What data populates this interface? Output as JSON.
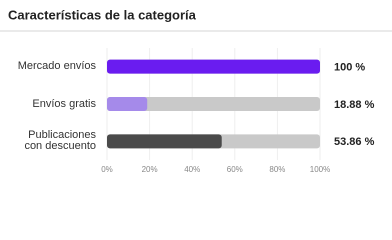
{
  "chart_data": {
    "type": "barh",
    "title": "Características de la categoría",
    "categories": [
      "Mercado envíos",
      "Envíos gratis",
      "Publicaciones con descuento"
    ],
    "values": [
      100,
      18.88,
      53.86
    ],
    "value_labels": [
      "100 %",
      "18.88 %",
      "53.86 %"
    ],
    "colors": [
      "#6a1cf0",
      "#a58aea",
      "#4a4a4a"
    ],
    "track_color": "#c9c9c9",
    "xlim": [
      0,
      100
    ],
    "xticks": [
      {
        "value": 0,
        "label": "0%"
      },
      {
        "value": 20,
        "label": "20%"
      },
      {
        "value": 40,
        "label": "40%"
      },
      {
        "value": 60,
        "label": "60%"
      },
      {
        "value": 80,
        "label": "80%"
      },
      {
        "value": 100,
        "label": "100%"
      }
    ],
    "grid": true
  }
}
